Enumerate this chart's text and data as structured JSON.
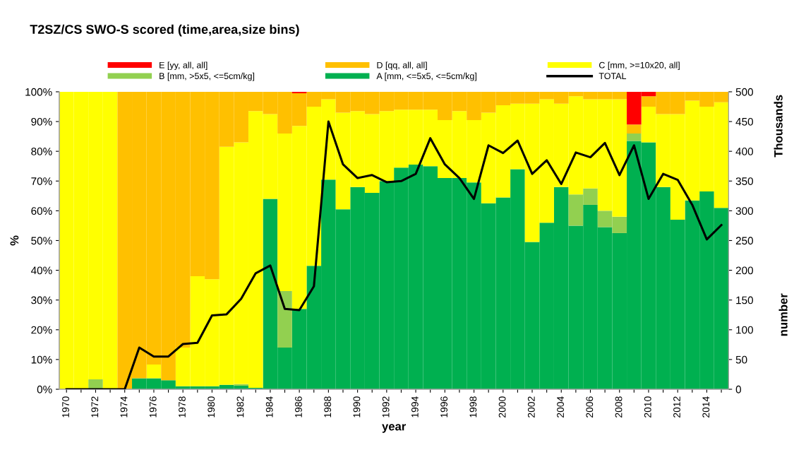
{
  "chart_data": {
    "type": "bar",
    "stacked": true,
    "title": "T2SZ/CS SWO-S scored (time,area,size bins)",
    "xlabel": "year",
    "ylabel": "%",
    "y2label": "number",
    "annotations": [
      "Thousands"
    ],
    "categories": [
      "1970",
      null,
      "1972",
      null,
      "1974",
      null,
      "1976",
      null,
      "1978",
      null,
      "1980",
      null,
      "1982",
      null,
      "1984",
      null,
      "1986",
      null,
      "1988",
      null,
      "1990",
      null,
      "1992",
      null,
      "1994",
      null,
      "1996",
      null,
      "1998",
      null,
      "2000",
      null,
      "2002",
      null,
      "2004",
      null,
      "2006",
      null,
      "2008",
      null,
      "2010",
      null,
      "2012",
      null,
      "2014",
      null
    ],
    "ylim": [
      0,
      100
    ],
    "yticks": [
      {
        "value": 0,
        "label": "0%"
      },
      {
        "value": 10,
        "label": "10%"
      },
      {
        "value": 20,
        "label": "20%"
      },
      {
        "value": 30,
        "label": "30%"
      },
      {
        "value": 40,
        "label": "40%"
      },
      {
        "value": 50,
        "label": "50%"
      },
      {
        "value": 60,
        "label": "60%"
      },
      {
        "value": 70,
        "label": "70%"
      },
      {
        "value": 80,
        "label": "80%"
      },
      {
        "value": 90,
        "label": "90%"
      },
      {
        "value": 100,
        "label": "100%"
      }
    ],
    "y2lim": [
      0,
      500
    ],
    "y2ticks": [
      0,
      50,
      100,
      150,
      200,
      250,
      300,
      350,
      400,
      450,
      500
    ],
    "grid": false,
    "legend": "top",
    "series": [
      {
        "name": "A [mm, <=5x5, <=5cm/kg]",
        "color": "#00b050",
        "values": [
          0,
          0,
          0,
          0,
          0,
          3.7,
          3.7,
          3,
          1,
          1,
          1,
          1.5,
          1.2,
          0.5,
          64,
          14,
          27,
          41.5,
          70.5,
          60.5,
          68,
          66,
          70,
          74.5,
          75.5,
          75,
          71,
          71,
          69.5,
          62.5,
          64.5,
          74,
          49.5,
          56,
          68,
          55,
          62,
          54.5,
          52.5,
          83.5,
          83,
          68,
          57,
          63.5,
          66.5,
          61
        ]
      },
      {
        "name": "B [mm, >5x5, <=5cm/kg]",
        "color": "#92d050",
        "values": [
          0,
          0,
          3.3,
          0,
          0,
          0,
          0,
          0,
          0,
          0,
          0,
          0,
          0.5,
          0,
          0,
          19,
          0,
          0,
          0,
          0,
          0,
          0,
          0,
          0,
          0,
          0,
          0,
          0,
          0,
          0,
          0,
          0,
          0,
          0,
          0,
          10.5,
          5.5,
          5.5,
          5.5,
          2.5,
          0,
          0,
          0,
          0,
          0,
          0
        ]
      },
      {
        "name": "C [mm, >=10x20, all]",
        "color": "#ffff00",
        "values": [
          100,
          100,
          96.7,
          100,
          0,
          0,
          4.6,
          0,
          13,
          37,
          36,
          80,
          81.3,
          93,
          28.5,
          53,
          61.5,
          53.5,
          27,
          32.5,
          25.5,
          26.5,
          23.5,
          19.5,
          18.5,
          19,
          19.5,
          22.5,
          21,
          30.5,
          31,
          22,
          46.5,
          41.5,
          28,
          33,
          30,
          37.5,
          39.5,
          0,
          12,
          24.5,
          35.5,
          33.5,
          28.5,
          35.5
        ]
      },
      {
        "name": "D [qq, all, all]",
        "color": "#ffc000",
        "values": [
          0,
          0,
          0,
          0,
          100,
          96.3,
          91.7,
          97,
          86,
          62,
          63,
          18.5,
          17,
          6.5,
          7.5,
          14,
          11,
          5,
          2.5,
          7,
          6.5,
          7.5,
          6.5,
          6,
          6,
          6,
          9.5,
          6.5,
          9.5,
          7,
          4.5,
          4,
          4,
          2.5,
          4,
          1.5,
          2.5,
          2.5,
          2.5,
          3,
          3.5,
          7.5,
          7.5,
          3,
          5,
          3.5
        ]
      },
      {
        "name": "E [yy, all, all]",
        "color": "#ff0000",
        "values": [
          0,
          0,
          0,
          0,
          0,
          0,
          0,
          0,
          0,
          0,
          0,
          0,
          0,
          0,
          0,
          0,
          0.5,
          0,
          0,
          0,
          0,
          0,
          0,
          0,
          0,
          0,
          0,
          0,
          0,
          0,
          0,
          0,
          0,
          0,
          0,
          0,
          0,
          0,
          0,
          11,
          1.5,
          0,
          0,
          0,
          0,
          0
        ]
      },
      {
        "name": "TOTAL",
        "color": "#000000",
        "type": "line",
        "axis": "y2",
        "values": [
          0,
          0,
          0,
          0,
          0,
          70,
          55,
          55,
          76,
          78,
          124,
          126,
          152,
          195,
          208,
          135,
          133,
          173,
          450,
          378,
          355,
          360,
          348,
          350,
          362,
          422,
          378,
          355,
          320,
          410,
          397,
          418,
          362,
          385,
          345,
          398,
          390,
          414,
          360,
          410,
          320,
          362,
          352,
          310,
          252,
          276
        ]
      }
    ]
  }
}
